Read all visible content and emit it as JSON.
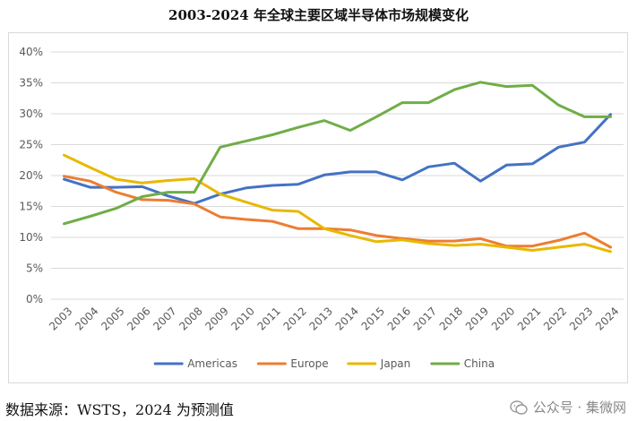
{
  "title": "2003-2024 年全球主要区域半导体市场规模变化",
  "source_note": "数据来源：WSTS，2024 为预测值",
  "watermark": {
    "text": "公众号 · 集微网",
    "icon": "wechat-icon"
  },
  "chart_data": {
    "type": "line",
    "title": "2003-2024 年全球主要区域半导体市场规模变化",
    "xlabel": "",
    "ylabel": "",
    "ylim": [
      0,
      40
    ],
    "y_ticks": [
      "0%",
      "5%",
      "10%",
      "15%",
      "20%",
      "25%",
      "30%",
      "35%",
      "40%"
    ],
    "grid": true,
    "legend_position": "bottom",
    "x": [
      "2003",
      "2004",
      "2005",
      "2006",
      "2007",
      "2008",
      "2009",
      "2010",
      "2011",
      "2012",
      "2013",
      "2014",
      "2015",
      "2016",
      "2017",
      "2018",
      "2019",
      "2020",
      "2021",
      "2022",
      "2023",
      "2024"
    ],
    "series": [
      {
        "name": "Americas",
        "color": "#4472c4",
        "values": [
          19.4,
          18.1,
          18.1,
          18.2,
          16.7,
          15.5,
          17.0,
          18.0,
          18.4,
          18.6,
          20.1,
          20.6,
          20.6,
          19.3,
          21.4,
          22.0,
          19.1,
          21.7,
          21.9,
          24.6,
          25.4,
          29.9
        ]
      },
      {
        "name": "Europe",
        "color": "#ed7d31",
        "values": [
          19.9,
          19.1,
          17.3,
          16.1,
          16.0,
          15.4,
          13.3,
          12.9,
          12.6,
          11.4,
          11.4,
          11.2,
          10.3,
          9.8,
          9.4,
          9.4,
          9.8,
          8.6,
          8.6,
          9.5,
          10.7,
          8.4
        ]
      },
      {
        "name": "Japan",
        "color": "#e8b800",
        "values": [
          23.3,
          21.3,
          19.4,
          18.8,
          19.2,
          19.5,
          17.0,
          15.7,
          14.4,
          14.2,
          11.4,
          10.3,
          9.3,
          9.6,
          9.0,
          8.7,
          8.9,
          8.4,
          7.9,
          8.4,
          8.9,
          7.7
        ]
      },
      {
        "name": "China",
        "color": "#70ad47",
        "values": [
          12.2,
          13.4,
          14.7,
          16.6,
          17.3,
          17.3,
          24.6,
          25.6,
          26.6,
          27.8,
          28.9,
          27.3,
          29.5,
          31.8,
          31.8,
          33.9,
          35.1,
          34.4,
          34.6,
          31.4,
          29.5,
          29.5
        ]
      }
    ]
  }
}
